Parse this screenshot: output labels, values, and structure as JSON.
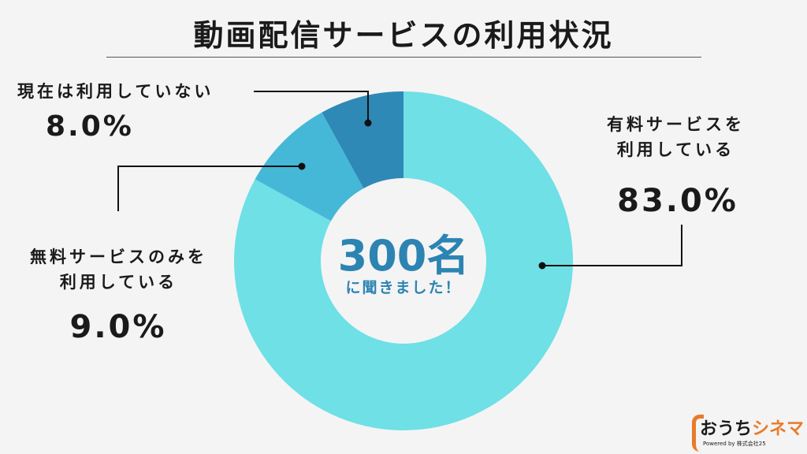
{
  "title": "動画配信サービスの利用状況",
  "center": {
    "number": "300名",
    "subtitle": "に聞きました！"
  },
  "chart_data": {
    "type": "pie",
    "donut": true,
    "categories": [
      "有料サービスを利用している",
      "無料サービスのみを利用している",
      "現在は利用していない"
    ],
    "label_lines": [
      [
        "有料サービスを",
        "利用している"
      ],
      [
        "無料サービスのみを",
        "利用している"
      ],
      [
        "現在は利用していない"
      ]
    ],
    "values": [
      83.0,
      9.0,
      8.0
    ],
    "value_labels": [
      "83.0%",
      "9.0%",
      "8.0%"
    ],
    "colors": [
      "#6ee0e6",
      "#45b8d8",
      "#2e89b7"
    ]
  },
  "logo": {
    "name_part1": "おうち",
    "name_part2": "シネマ",
    "powered": "Powered by 株式会社25"
  }
}
